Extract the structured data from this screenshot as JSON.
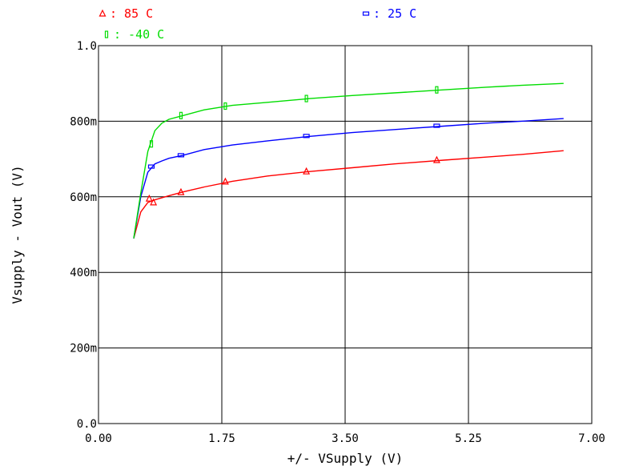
{
  "chart_data": {
    "type": "line",
    "title": "",
    "xlabel": "+/- VSupply (V)",
    "ylabel": "Vsupply - Vout (V)",
    "xlim": [
      0,
      7
    ],
    "ylim": [
      0,
      1.0
    ],
    "xticks": [
      0,
      1.75,
      3.5,
      5.25,
      7
    ],
    "xtick_labels": [
      "0.00",
      "1.75",
      "3.50",
      "5.25",
      "7.00"
    ],
    "yticks": [
      0,
      0.2,
      0.4,
      0.6,
      0.8,
      1.0
    ],
    "ytick_labels": [
      "0.0",
      "200m",
      "400m",
      "600m",
      "800m",
      "1.0"
    ],
    "grid": true,
    "legend_position": "top",
    "series": [
      {
        "name": "85 C",
        "color": "#ff0000",
        "marker": "triangle",
        "x": [
          0.5,
          0.6,
          0.7,
          0.8,
          1.0,
          1.2,
          1.5,
          1.9,
          2.4,
          3.0,
          3.6,
          4.2,
          4.9,
          5.5,
          6.0,
          6.6
        ],
        "y": [
          0.49,
          0.56,
          0.585,
          0.592,
          0.603,
          0.613,
          0.626,
          0.641,
          0.655,
          0.667,
          0.677,
          0.687,
          0.697,
          0.705,
          0.712,
          0.722
        ],
        "marker_x": [
          0.72,
          0.78,
          1.17,
          1.8,
          2.95,
          4.8
        ],
        "marker_y": [
          0.595,
          0.585,
          0.612,
          0.64,
          0.667,
          0.697
        ]
      },
      {
        "name": "25 C",
        "color": "#0000ff",
        "marker": "square",
        "x": [
          0.5,
          0.6,
          0.7,
          0.8,
          0.9,
          1.0,
          1.2,
          1.5,
          1.9,
          2.4,
          3.0,
          3.6,
          4.2,
          4.9,
          5.5,
          6.0,
          6.6
        ],
        "y": [
          0.49,
          0.6,
          0.665,
          0.687,
          0.695,
          0.702,
          0.71,
          0.725,
          0.737,
          0.748,
          0.76,
          0.77,
          0.778,
          0.787,
          0.795,
          0.8,
          0.807
        ],
        "marker_x": [
          0.75,
          1.17,
          2.95,
          4.8
        ],
        "marker_y": [
          0.68,
          0.71,
          0.761,
          0.788
        ]
      },
      {
        "name": "-40 C",
        "color": "#00dd00",
        "marker": "bar",
        "x": [
          0.5,
          0.6,
          0.7,
          0.8,
          0.9,
          1.0,
          1.2,
          1.5,
          1.9,
          2.4,
          3.0,
          3.6,
          4.2,
          4.9,
          5.5,
          6.0,
          6.6
        ],
        "y": [
          0.49,
          0.61,
          0.72,
          0.775,
          0.795,
          0.805,
          0.815,
          0.83,
          0.842,
          0.85,
          0.86,
          0.868,
          0.875,
          0.883,
          0.89,
          0.895,
          0.9
        ],
        "marker_x": [
          0.75,
          1.17,
          1.8,
          2.95,
          4.8
        ],
        "marker_y": [
          0.74,
          0.815,
          0.84,
          0.86,
          0.883
        ]
      }
    ]
  }
}
